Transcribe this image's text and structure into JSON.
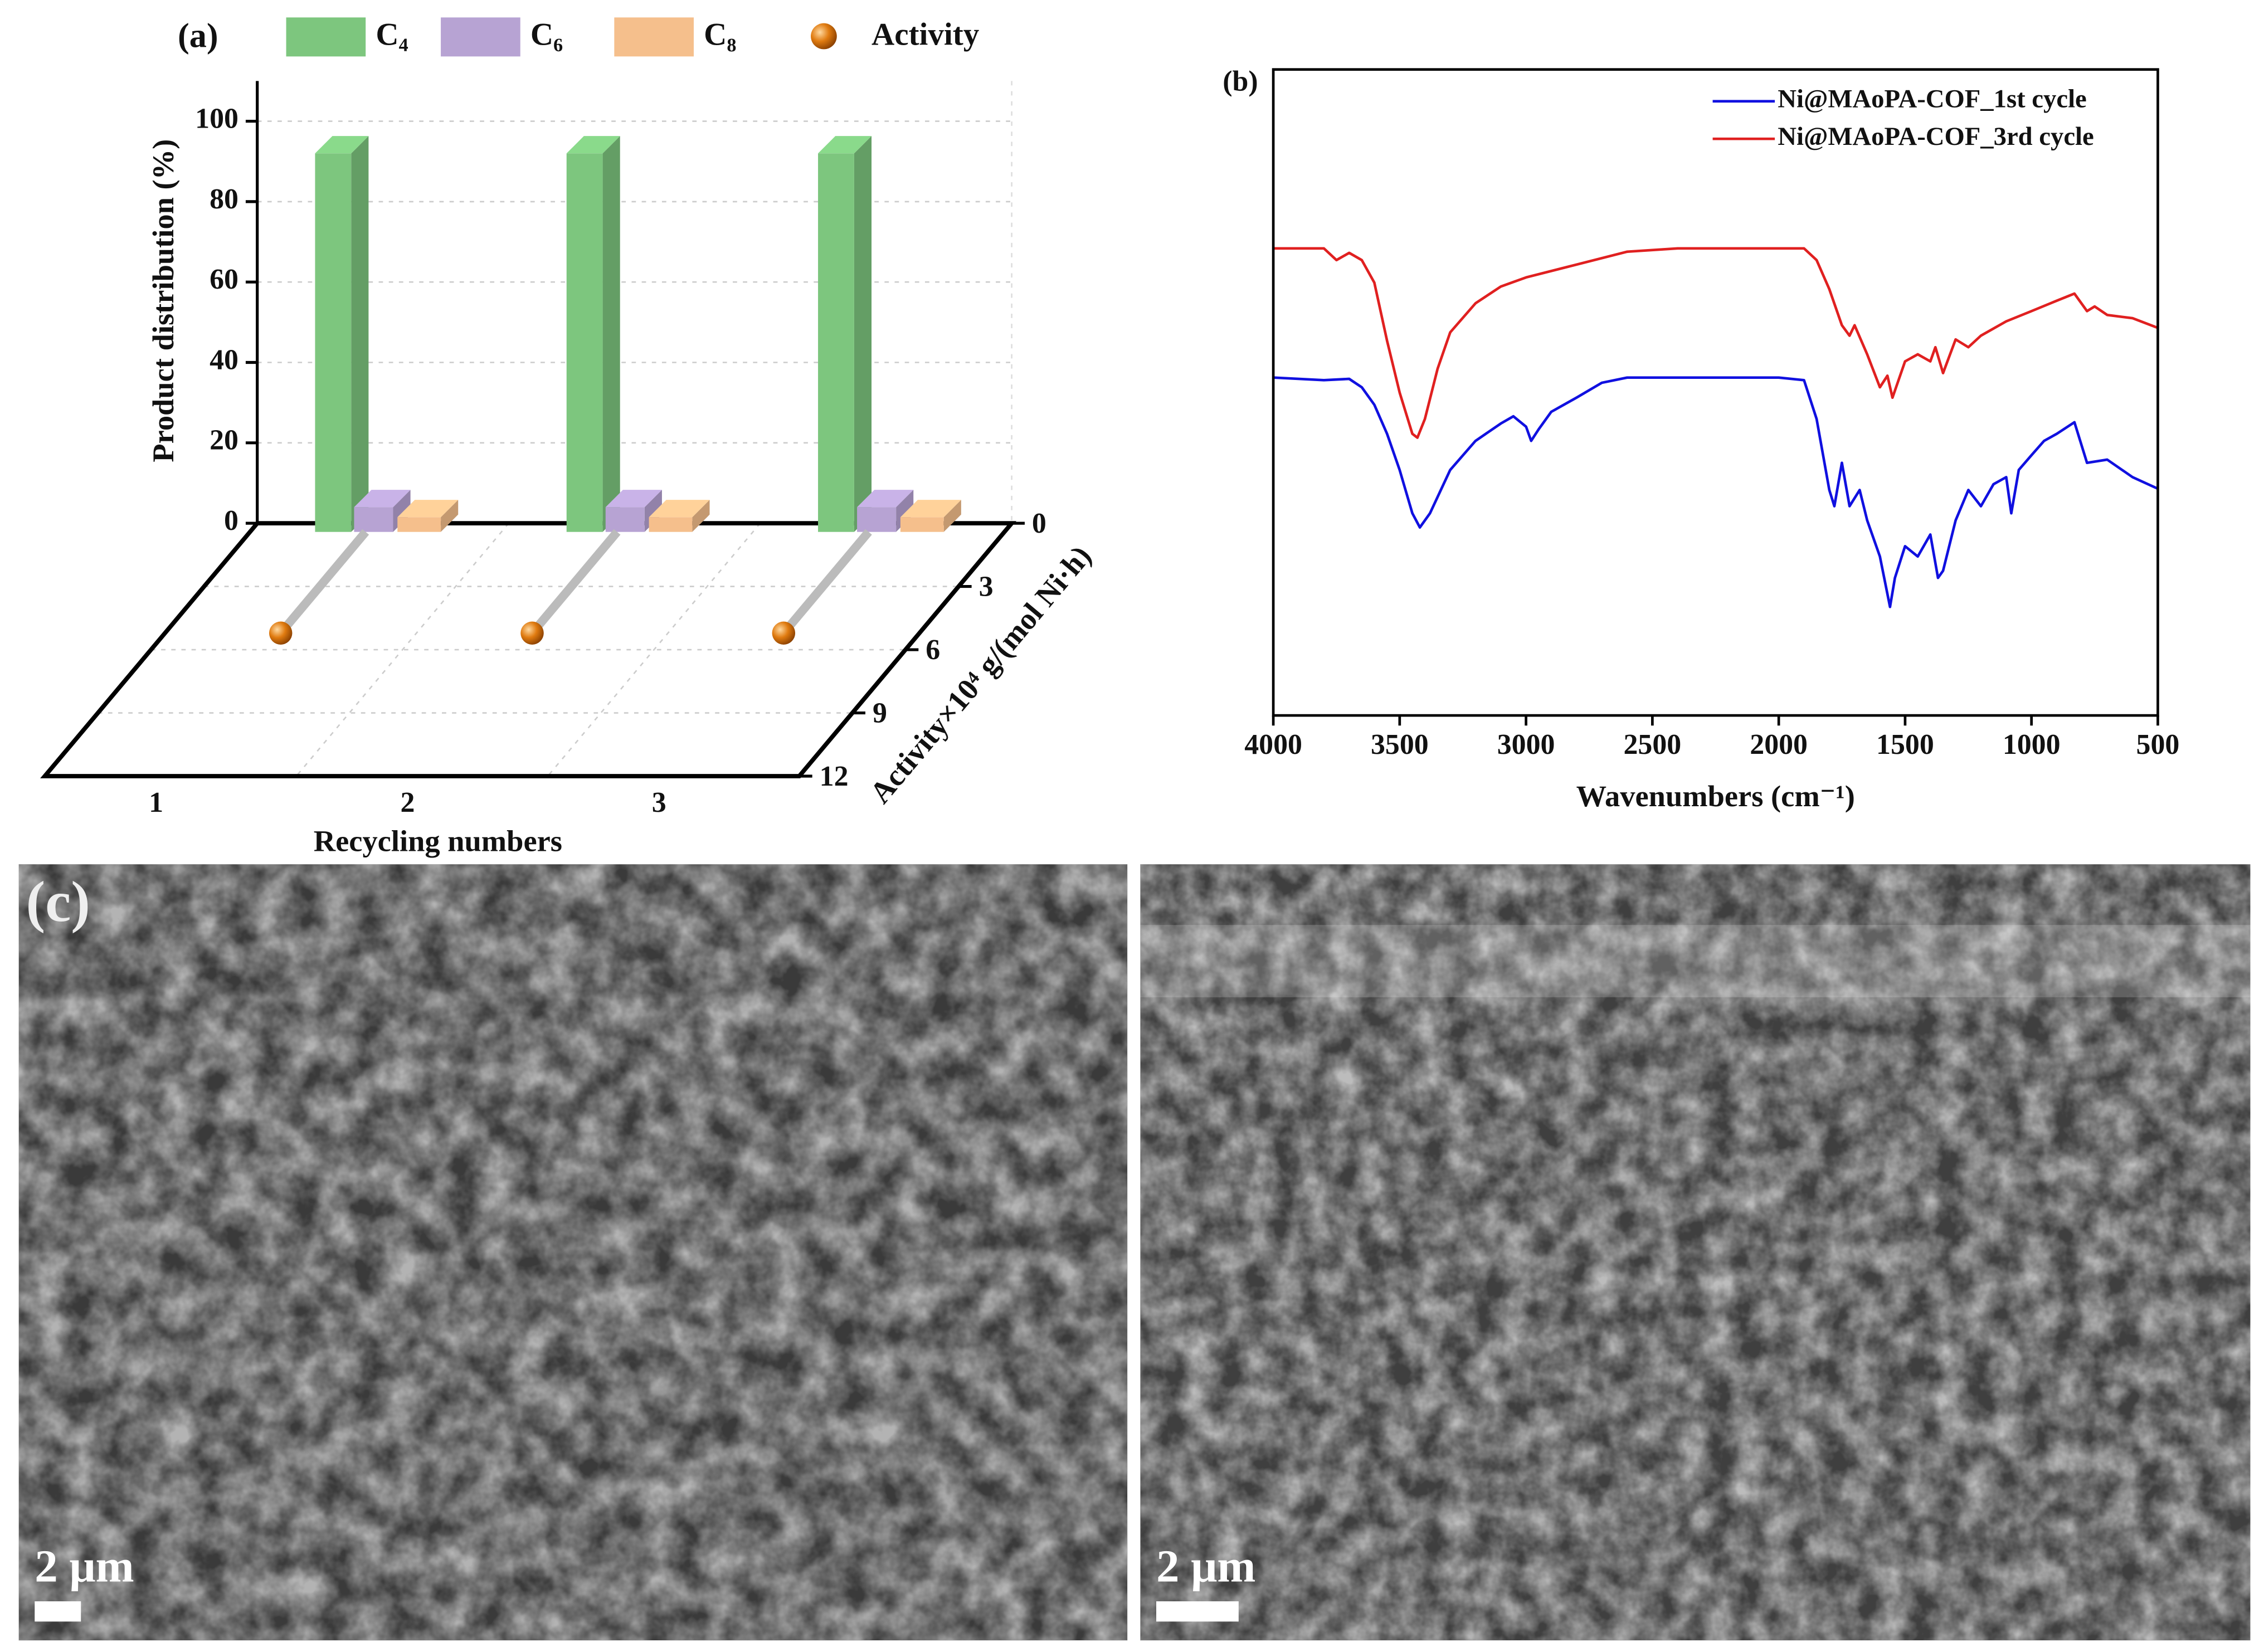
{
  "chart_data": [
    {
      "type": "bar3d",
      "label": "(a)",
      "ylabel": "Product distribution (%)",
      "xlabel": "Recycling numbers",
      "zlabel": "Activity×10⁴ g/(mol Ni·h)",
      "categories": [
        "1",
        "2",
        "3"
      ],
      "series": [
        {
          "name": "C₄",
          "color": "#7dc67e",
          "values": [
            92,
            92,
            92
          ]
        },
        {
          "name": "C₆",
          "color": "#b7a3d3",
          "values": [
            4,
            4,
            4
          ]
        },
        {
          "name": "C₈",
          "color": "#f5bf8c",
          "values": [
            1.5,
            1.5,
            1.5
          ]
        },
        {
          "name": "Activity",
          "color": "#e07b10",
          "axis": "z",
          "values": [
            4.8,
            4.8,
            4.8
          ]
        }
      ],
      "ylim": [
        0,
        110
      ],
      "yticks": [
        0,
        20,
        40,
        60,
        80,
        100
      ],
      "zlim": [
        0,
        12
      ],
      "zticks": [
        0,
        3,
        6,
        9,
        12
      ],
      "grid": true,
      "legend_position": "top"
    },
    {
      "type": "line",
      "label": "(b)",
      "xlabel": "Wavenumbers (cm⁻¹)",
      "xlim": [
        4000,
        500
      ],
      "xticks": [
        4000,
        3500,
        3000,
        2500,
        2000,
        1500,
        1000,
        500
      ],
      "ylim": [
        0,
        100
      ],
      "legend_position": "top right",
      "series": [
        {
          "name": "Ni@MAoPA-COF_1st cycle",
          "color": "#1010e0",
          "x": [
            4000,
            3800,
            3700,
            3650,
            3600,
            3550,
            3500,
            3450,
            3420,
            3380,
            3300,
            3200,
            3100,
            3050,
            3000,
            2980,
            2950,
            2900,
            2800,
            2700,
            2600,
            2000,
            1900,
            1850,
            1800,
            1780,
            1750,
            1720,
            1680,
            1650,
            1600,
            1560,
            1540,
            1500,
            1450,
            1400,
            1370,
            1350,
            1300,
            1250,
            1200,
            1150,
            1100,
            1080,
            1050,
            1000,
            950,
            900,
            830,
            780,
            700,
            600,
            500
          ],
          "values": [
            52.3,
            51.9,
            52.1,
            50.8,
            48.1,
            43.6,
            38,
            31.3,
            29.1,
            31.3,
            38,
            42.5,
            45.2,
            46.3,
            44.7,
            42.5,
            44.3,
            47,
            49.2,
            51.5,
            52.3,
            52.3,
            51.9,
            45.9,
            34.9,
            32.4,
            39.1,
            32.4,
            34.9,
            30.2,
            24.6,
            16.8,
            21.3,
            26.2,
            24.6,
            28,
            21.3,
            22.4,
            30.2,
            34.9,
            32.4,
            35.8,
            36.9,
            31.3,
            38,
            40.3,
            42.5,
            43.6,
            45.4,
            39.1,
            39.6,
            36.9,
            35.1
          ]
        },
        {
          "name": "Ni@MAoPA-COF_3rd cycle",
          "color": "#e02020",
          "x": [
            4000,
            3800,
            3750,
            3700,
            3650,
            3600,
            3550,
            3500,
            3450,
            3430,
            3400,
            3350,
            3300,
            3200,
            3100,
            3000,
            2800,
            2600,
            2400,
            2000,
            1900,
            1850,
            1800,
            1750,
            1720,
            1700,
            1650,
            1600,
            1570,
            1550,
            1500,
            1450,
            1400,
            1380,
            1350,
            1300,
            1250,
            1200,
            1100,
            1000,
            900,
            830,
            780,
            750,
            700,
            600,
            500
          ],
          "values": [
            72.3,
            72.3,
            70.5,
            71.6,
            70.5,
            67,
            58,
            50,
            43.6,
            43,
            45.9,
            53.7,
            59.3,
            63.8,
            66.4,
            67.8,
            69.8,
            71.8,
            72.3,
            72.3,
            72.3,
            70.5,
            66,
            60.4,
            58.8,
            60.4,
            55.9,
            50.8,
            52.6,
            49.2,
            54.8,
            55.9,
            54.8,
            57,
            53,
            58.2,
            57,
            58.8,
            61,
            62.6,
            64.2,
            65.3,
            62.6,
            63.3,
            62,
            61.5,
            60
          ]
        }
      ]
    }
  ],
  "sem": {
    "label": "(c)",
    "scale_bars": [
      "2 μm",
      "2 μm"
    ]
  }
}
